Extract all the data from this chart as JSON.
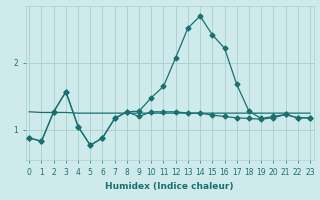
{
  "xlabel": "Humidex (Indice chaleur)",
  "bg_color": "#ceeaea",
  "grid_color": "#aacfcf",
  "line_color": "#1a7070",
  "x_ticks": [
    0,
    1,
    2,
    3,
    4,
    5,
    6,
    7,
    8,
    9,
    10,
    11,
    12,
    13,
    14,
    15,
    16,
    17,
    18,
    19,
    20,
    21,
    22,
    23
  ],
  "y_ticks": [
    1,
    2
  ],
  "ylim": [
    0.55,
    2.85
  ],
  "xlim": [
    -0.3,
    23.3
  ],
  "series1_y": [
    0.88,
    0.83,
    1.27,
    1.57,
    1.05,
    0.77,
    0.88,
    1.17,
    1.27,
    1.2,
    1.27,
    1.27,
    1.27,
    1.25,
    1.25,
    1.22,
    1.2,
    1.18,
    1.17,
    1.16,
    1.18,
    1.23,
    1.18,
    1.18
  ],
  "series2_y": [
    0.88,
    0.83,
    1.27,
    1.57,
    1.05,
    0.77,
    0.88,
    1.17,
    1.27,
    1.28,
    1.48,
    1.65,
    2.08,
    2.52,
    2.7,
    2.42,
    2.22,
    1.68,
    1.28,
    1.17,
    1.2,
    1.23,
    1.18,
    1.18
  ],
  "series3_y": [
    1.27,
    1.26,
    1.26,
    1.26,
    1.25,
    1.25,
    1.25,
    1.25,
    1.25,
    1.25,
    1.25,
    1.25,
    1.25,
    1.25,
    1.25,
    1.25,
    1.25,
    1.25,
    1.25,
    1.25,
    1.25,
    1.25,
    1.25,
    1.25
  ],
  "marker_size": 2.5,
  "line_width": 0.9,
  "tick_fontsize": 5.5,
  "xlabel_fontsize": 6.5
}
